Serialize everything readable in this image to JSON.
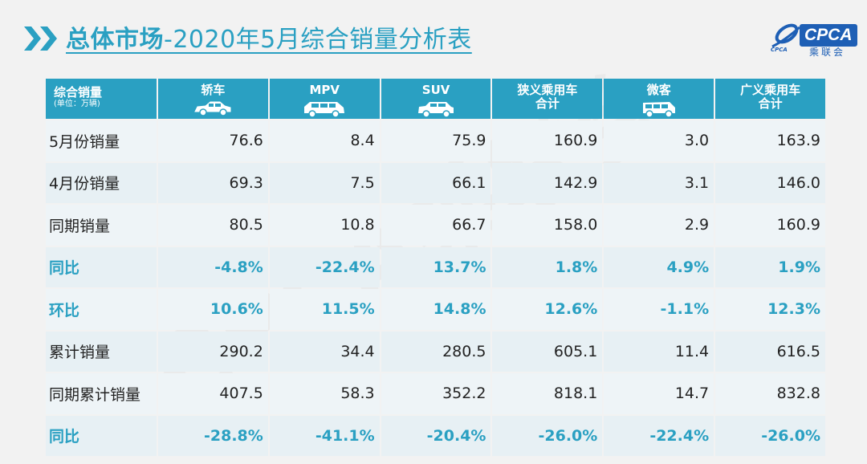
{
  "header": {
    "title_bold": "总体市场",
    "title_rest": "-2020年5月综合销量分析表",
    "logo_text": "CPCA",
    "logo_sub": "乘联会",
    "logo_mark_text": "CPCA"
  },
  "table": {
    "corner_label": "综合销量",
    "corner_unit": "(单位：万辆)",
    "columns": [
      {
        "line1": "轿车",
        "line2": "",
        "icon": "sedan-icon"
      },
      {
        "line1": "MPV",
        "line2": "",
        "icon": "mpv-icon"
      },
      {
        "line1": "SUV",
        "line2": "",
        "icon": "suv-icon"
      },
      {
        "line1": "狭义乘用车",
        "line2": "合计",
        "icon": ""
      },
      {
        "line1": "微客",
        "line2": "",
        "icon": "minivan-icon"
      },
      {
        "line1": "广义乘用车",
        "line2": "合计",
        "icon": ""
      }
    ],
    "rows": [
      {
        "label": "5月份销量",
        "values": [
          "76.6",
          "8.4",
          "75.9",
          "160.9",
          "3.0",
          "163.9"
        ],
        "highlight": false
      },
      {
        "label": "4月份销量",
        "values": [
          "69.3",
          "7.5",
          "66.1",
          "142.9",
          "3.1",
          "146.0"
        ],
        "highlight": false
      },
      {
        "label": "同期销量",
        "values": [
          "80.5",
          "10.8",
          "66.7",
          "158.0",
          "2.9",
          "160.9"
        ],
        "highlight": false
      },
      {
        "label": "同比",
        "values": [
          "-4.8%",
          "-22.4%",
          "13.7%",
          "1.8%",
          "4.9%",
          "1.9%"
        ],
        "highlight": true
      },
      {
        "label": "环比",
        "values": [
          "10.6%",
          "11.5%",
          "14.8%",
          "12.6%",
          "-1.1%",
          "12.3%"
        ],
        "highlight": true
      },
      {
        "label": "累计销量",
        "values": [
          "290.2",
          "34.4",
          "280.5",
          "605.1",
          "11.4",
          "616.5"
        ],
        "highlight": false
      },
      {
        "label": "同期累计销量",
        "values": [
          "407.5",
          "58.3",
          "352.2",
          "818.1",
          "14.7",
          "832.8"
        ],
        "highlight": false
      },
      {
        "label": "同比",
        "values": [
          "-28.8%",
          "-41.1%",
          "-20.4%",
          "-26.0%",
          "-22.4%",
          "-26.0%"
        ],
        "highlight": true
      }
    ]
  },
  "watermark": "CPCA乘联会",
  "colors": {
    "accent": "#2aa0c2",
    "background": "#f2f2f2",
    "logo_blue": "#1e5fb5"
  }
}
